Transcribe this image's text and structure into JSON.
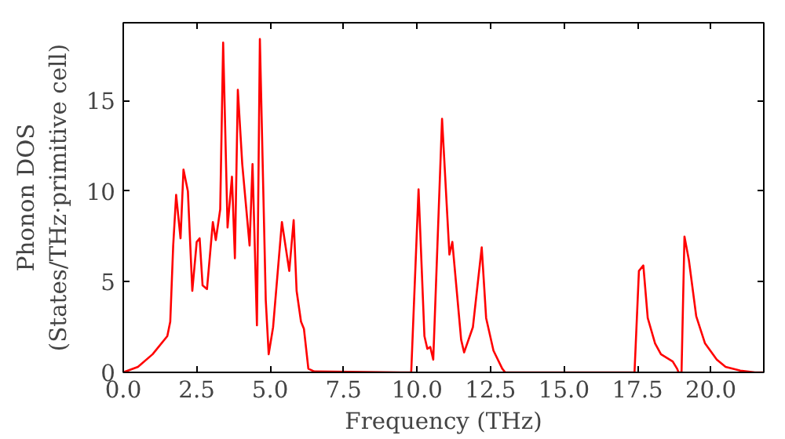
{
  "chart_data": {
    "type": "line",
    "xlabel": "Frequency (THz)",
    "ylabel": "Phonon DOS\n(States/THz·primitive cell)",
    "xlim": [
      0,
      21.8
    ],
    "ylim": [
      0,
      19.3
    ],
    "xticks": [
      {
        "value": 0,
        "label": "0.0"
      },
      {
        "value": 2.5,
        "label": "2.5"
      },
      {
        "value": 5,
        "label": "5.0"
      },
      {
        "value": 7.5,
        "label": "7.5"
      },
      {
        "value": 10,
        "label": "10.0"
      },
      {
        "value": 12.5,
        "label": "12.5"
      },
      {
        "value": 15,
        "label": "15.0"
      },
      {
        "value": 17.5,
        "label": "17.5"
      },
      {
        "value": 20,
        "label": "20.0"
      }
    ],
    "yticks": [
      0,
      5,
      10,
      15
    ],
    "grid": false,
    "series": [
      {
        "color": "#ff0000",
        "x": [
          0,
          0.5,
          1.0,
          1.5,
          1.6,
          1.7,
          1.8,
          1.95,
          2.05,
          2.2,
          2.35,
          2.5,
          2.6,
          2.7,
          2.85,
          3.05,
          3.15,
          3.3,
          3.4,
          3.55,
          3.7,
          3.8,
          3.9,
          4.05,
          4.3,
          4.4,
          4.55,
          4.65,
          4.85,
          4.95,
          5.1,
          5.4,
          5.65,
          5.8,
          5.9,
          6.05,
          6.15,
          6.3,
          6.5,
          9.5,
          9.8,
          10.05,
          10.25,
          10.35,
          10.45,
          10.55,
          10.85,
          11.1,
          11.2,
          11.5,
          11.6,
          11.9,
          12.2,
          12.35,
          12.6,
          12.9,
          13.0,
          17.4,
          17.55,
          17.7,
          17.85,
          18.1,
          18.3,
          18.7,
          18.85,
          18.9,
          19.0,
          19.1,
          19.25,
          19.5,
          19.8,
          20.2,
          20.5,
          21.0,
          21.5,
          21.8
        ],
        "values": [
          0,
          0.3,
          1.0,
          2.0,
          2.8,
          7.0,
          9.8,
          7.4,
          11.2,
          10.0,
          4.5,
          7.2,
          7.4,
          4.8,
          4.6,
          8.3,
          7.3,
          9.0,
          18.2,
          8.0,
          10.8,
          6.3,
          15.6,
          11.5,
          7.0,
          11.5,
          2.6,
          18.4,
          4.0,
          1.0,
          2.5,
          8.3,
          5.6,
          8.4,
          4.5,
          2.8,
          2.4,
          0.2,
          0.05,
          0,
          0,
          10.1,
          2.0,
          1.3,
          1.4,
          0.7,
          14.0,
          6.5,
          7.2,
          1.8,
          1.1,
          2.5,
          6.9,
          3.0,
          1.2,
          0.2,
          0,
          0,
          5.6,
          5.9,
          3.0,
          1.6,
          1.0,
          0.6,
          0.2,
          0,
          0,
          7.5,
          6.2,
          3.1,
          1.6,
          0.7,
          0.3,
          0.1,
          0,
          0
        ]
      }
    ]
  }
}
